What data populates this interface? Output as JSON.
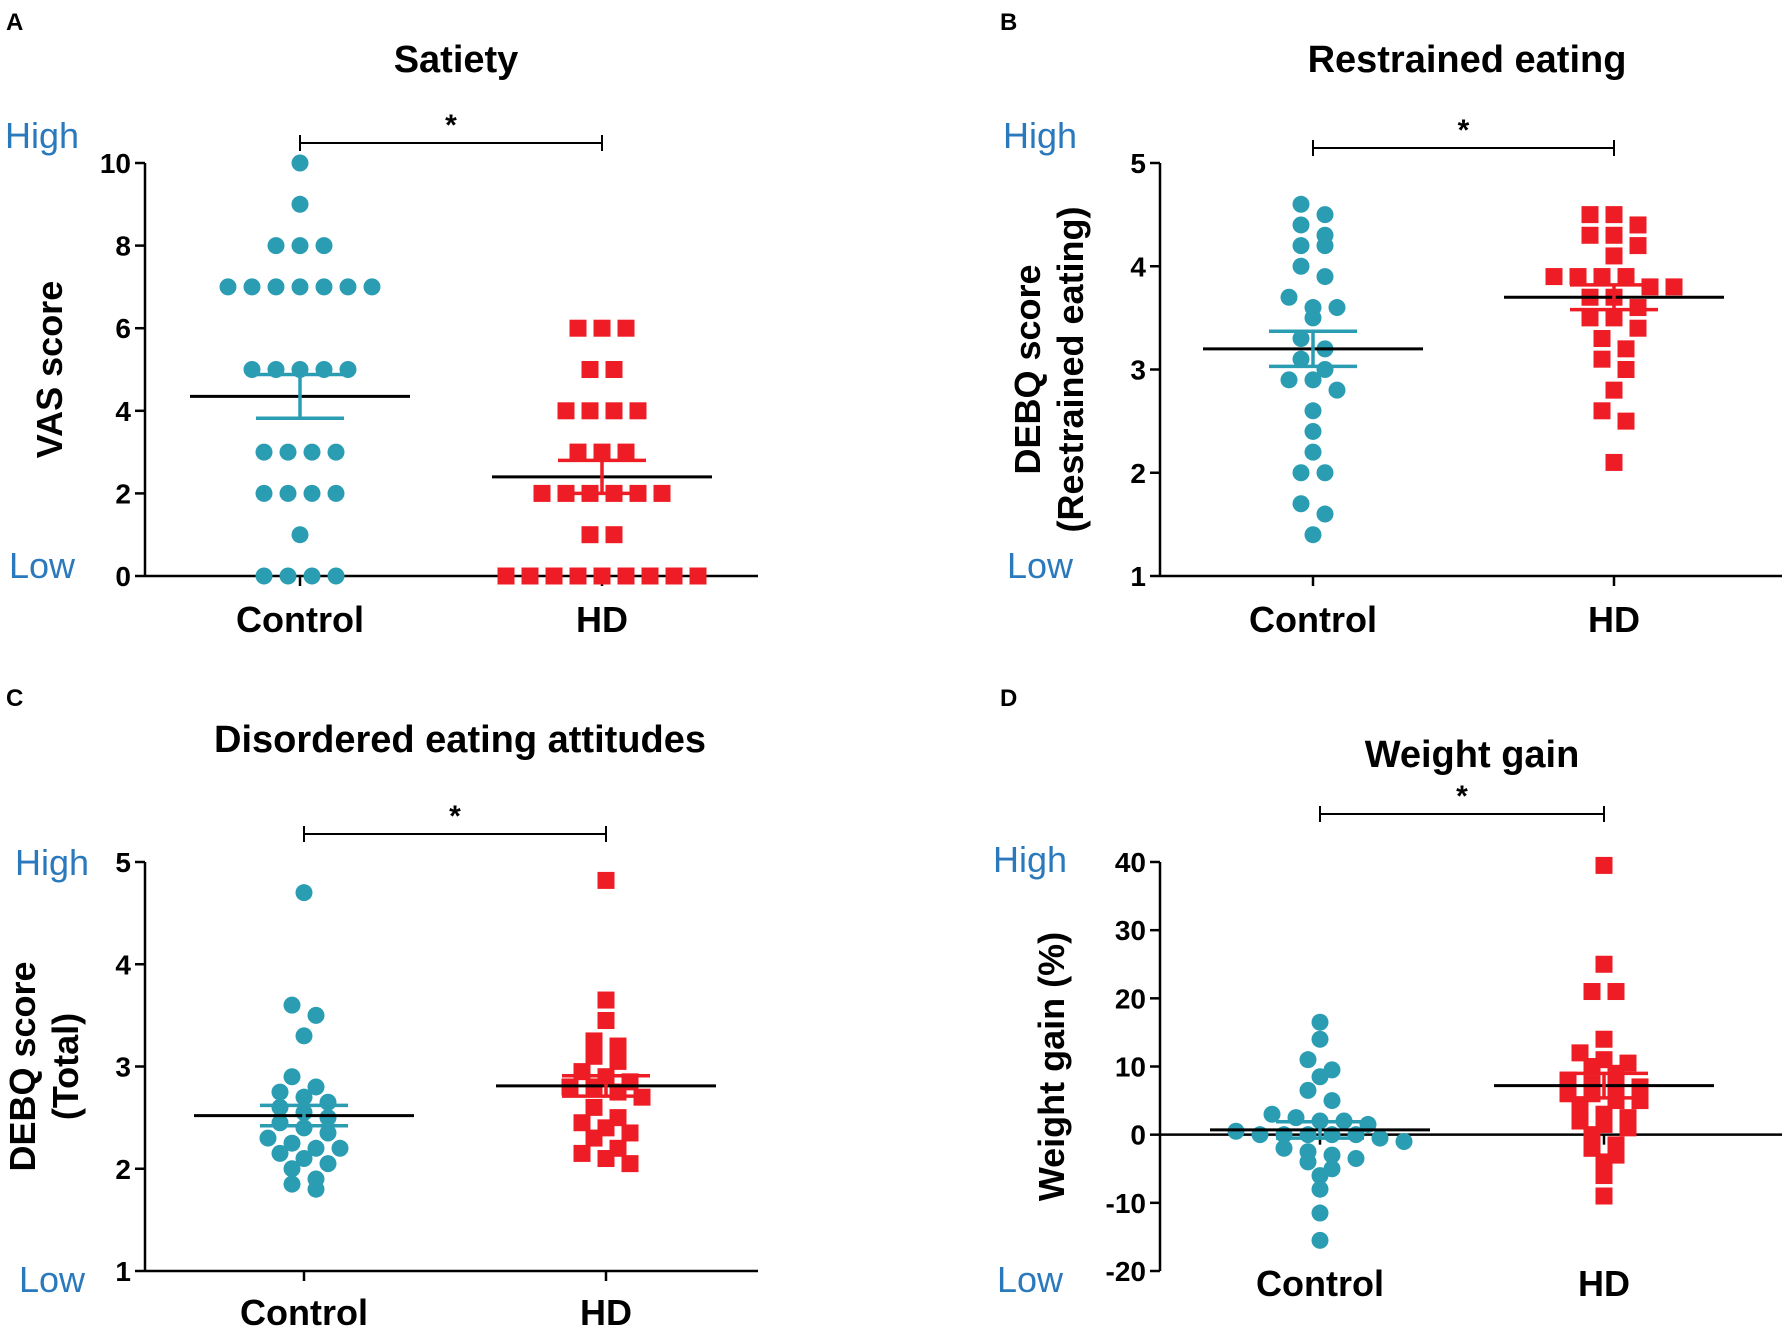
{
  "colors": {
    "control": "#2a9db3",
    "hd": "#ee1c25",
    "scale_text": "#2b79bd",
    "axis": "#000000"
  },
  "chart_data": [
    {
      "id": "A",
      "type": "scatter",
      "panel_label": "A",
      "title": "Satiety",
      "ylabel": "VAS score",
      "ylim": [
        0,
        10
      ],
      "yticks": [
        "0",
        "2",
        "4",
        "6",
        "8",
        "10"
      ],
      "high_label": "High",
      "low_label": "Low",
      "significance": "*",
      "categories": [
        "Control",
        "HD"
      ],
      "series": [
        {
          "name": "Control",
          "marker": "circle",
          "mean": 4.35,
          "sem": 0.53,
          "values": [
            10,
            9,
            8,
            8,
            8,
            7,
            7,
            7,
            7,
            7,
            7,
            7,
            5,
            5,
            5,
            5,
            5,
            3,
            3,
            3,
            3,
            2,
            2,
            2,
            2,
            1,
            0,
            0,
            0,
            0
          ]
        },
        {
          "name": "HD",
          "marker": "square",
          "mean": 2.4,
          "sem": 0.4,
          "values": [
            6,
            6,
            6,
            5,
            5,
            4,
            4,
            4,
            4,
            3,
            3,
            3,
            2,
            2,
            2,
            2,
            2,
            2,
            1,
            1,
            0,
            0,
            0,
            0,
            0,
            0,
            0,
            0,
            0
          ]
        }
      ]
    },
    {
      "id": "B",
      "type": "scatter",
      "panel_label": "B",
      "title": "Restrained eating",
      "ylabel": "DEBQ score",
      "ylabel2": "(Restrained eating)",
      "ylim": [
        1,
        5
      ],
      "yticks": [
        "1",
        "2",
        "3",
        "4",
        "5"
      ],
      "high_label": "High",
      "low_label": "Low",
      "significance": "*",
      "categories": [
        "Control",
        "HD"
      ],
      "series": [
        {
          "name": "Control",
          "marker": "circle",
          "mean": 3.2,
          "sem": 0.17,
          "values": [
            4.6,
            4.5,
            4.4,
            4.3,
            4.2,
            4.2,
            4.0,
            3.9,
            3.7,
            3.6,
            3.6,
            3.5,
            3.3,
            3.2,
            3.1,
            3.0,
            2.9,
            2.9,
            2.8,
            2.6,
            2.4,
            2.2,
            2.0,
            2.0,
            1.7,
            1.6,
            1.4
          ]
        },
        {
          "name": "HD",
          "marker": "square",
          "mean": 3.7,
          "sem": 0.12,
          "values": [
            4.5,
            4.5,
            4.4,
            4.3,
            4.3,
            4.2,
            4.1,
            3.9,
            3.9,
            3.9,
            3.9,
            3.8,
            3.8,
            3.7,
            3.7,
            3.6,
            3.5,
            3.5,
            3.4,
            3.3,
            3.2,
            3.1,
            3.0,
            2.8,
            2.6,
            2.5,
            2.1
          ]
        }
      ]
    },
    {
      "id": "C",
      "type": "scatter",
      "panel_label": "C",
      "title": "Disordered eating attitudes",
      "ylabel": "DEBQ score",
      "ylabel2": "(Total)",
      "ylim": [
        1,
        5
      ],
      "yticks": [
        "1",
        "2",
        "3",
        "4",
        "5"
      ],
      "high_label": "High",
      "low_label": "Low",
      "significance": "*",
      "categories": [
        "Control",
        "HD"
      ],
      "series": [
        {
          "name": "Control",
          "marker": "circle",
          "mean": 2.52,
          "sem": 0.1,
          "values": [
            4.7,
            3.6,
            3.5,
            3.3,
            2.9,
            2.8,
            2.75,
            2.7,
            2.65,
            2.6,
            2.55,
            2.5,
            2.45,
            2.4,
            2.35,
            2.3,
            2.25,
            2.2,
            2.2,
            2.15,
            2.1,
            2.05,
            2.0,
            1.9,
            1.85,
            1.8
          ]
        },
        {
          "name": "HD",
          "marker": "square",
          "mean": 2.81,
          "sem": 0.1,
          "values": [
            4.82,
            3.65,
            3.45,
            3.25,
            3.2,
            3.1,
            3.05,
            2.95,
            2.9,
            2.85,
            2.8,
            2.8,
            2.75,
            2.7,
            2.6,
            2.5,
            2.45,
            2.4,
            2.35,
            2.3,
            2.2,
            2.15,
            2.1,
            2.05
          ]
        }
      ]
    },
    {
      "id": "D",
      "type": "scatter",
      "panel_label": "D",
      "title": "Weight gain",
      "ylabel": "Weight gain (%)",
      "ylim": [
        -20,
        40
      ],
      "yticks": [
        "-20",
        "-10",
        "0",
        "10",
        "20",
        "30",
        "40"
      ],
      "high_label": "High",
      "low_label": "Low",
      "significance": "*",
      "categories": [
        "Control",
        "HD"
      ],
      "series": [
        {
          "name": "Control",
          "marker": "circle",
          "mean": 0.7,
          "sem": 1.2,
          "values": [
            16.5,
            14,
            11,
            9.5,
            8.5,
            6.5,
            5,
            3,
            2.5,
            2,
            2,
            1.5,
            0.5,
            0,
            0,
            0,
            0,
            0,
            -0.5,
            -1,
            -2,
            -2.5,
            -3,
            -3.5,
            -4,
            -5,
            -6,
            -8,
            -11.5,
            -15.5
          ]
        },
        {
          "name": "HD",
          "marker": "square",
          "mean": 7.2,
          "sem": 1.8,
          "values": [
            39.5,
            25,
            21,
            21,
            14,
            12,
            11,
            10.5,
            10,
            9,
            8,
            7.5,
            7,
            7,
            6,
            6,
            5,
            5,
            4,
            3,
            2.5,
            2,
            1.5,
            1,
            0,
            -1.5,
            -2,
            -3,
            -4,
            -6,
            -9
          ]
        }
      ]
    }
  ]
}
